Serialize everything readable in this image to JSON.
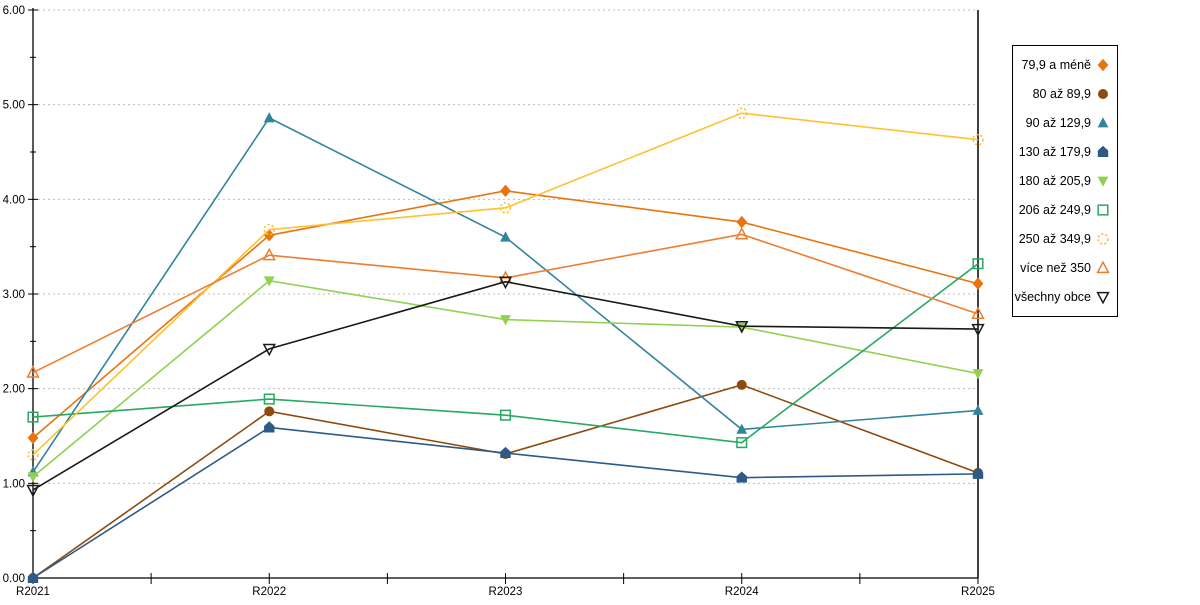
{
  "chart_data": {
    "type": "line",
    "title": "",
    "xlabel": "",
    "ylabel": "",
    "categories": [
      "R2021",
      "R2022",
      "R2023",
      "R2024",
      "R2025"
    ],
    "y_tick_labels": [
      "0.00",
      "1.00",
      "2.00",
      "3.00",
      "4.00",
      "5.00",
      "6.00"
    ],
    "ylim": [
      0,
      6
    ],
    "grid": "horizontal-dotted",
    "legend_position": "right",
    "colors": {
      "grid": "#BEBEBE",
      "axis": "#000000",
      "background": "#FFFFFF"
    },
    "series": [
      {
        "name": "79,9 a méně",
        "color": "#E8740E",
        "marker": "diamond-filled-icon",
        "values": [
          1.48,
          3.62,
          4.09,
          3.76,
          3.11
        ]
      },
      {
        "name": "80 až 89,9",
        "color": "#8E4B10",
        "marker": "circle-filled-icon",
        "values": [
          0.0,
          1.76,
          1.31,
          2.04,
          1.11
        ]
      },
      {
        "name": "90 až 129,9",
        "color": "#31849B",
        "marker": "triangle-up-filled-icon",
        "values": [
          1.12,
          4.86,
          3.6,
          1.57,
          1.77
        ]
      },
      {
        "name": "130 až 179,9",
        "color": "#2D5A87",
        "marker": "pentagon-filled-icon",
        "values": [
          0.0,
          1.59,
          1.32,
          1.06,
          1.1
        ]
      },
      {
        "name": "180 až 205,9",
        "color": "#92D050",
        "marker": "triangle-down-filled-icon",
        "values": [
          1.07,
          3.14,
          2.73,
          2.65,
          2.16
        ]
      },
      {
        "name": "206 až 249,9",
        "color": "#27A863",
        "marker": "square-open-icon",
        "values": [
          1.7,
          1.89,
          1.72,
          1.43,
          3.32
        ]
      },
      {
        "name": "250 až 349,9",
        "color": "#FDC22F",
        "marker": "circle-open-dashed-icon",
        "values": [
          1.3,
          3.68,
          3.91,
          4.91,
          4.63
        ]
      },
      {
        "name": "více než 350",
        "color": "#ED7D31",
        "marker": "triangle-up-open-icon",
        "values": [
          2.17,
          3.41,
          3.17,
          3.63,
          2.79
        ]
      },
      {
        "name": "všechny obce",
        "color": "#1A1A1A",
        "marker": "triangle-down-open-icon",
        "values": [
          0.93,
          2.42,
          3.13,
          2.66,
          2.63
        ]
      }
    ]
  }
}
